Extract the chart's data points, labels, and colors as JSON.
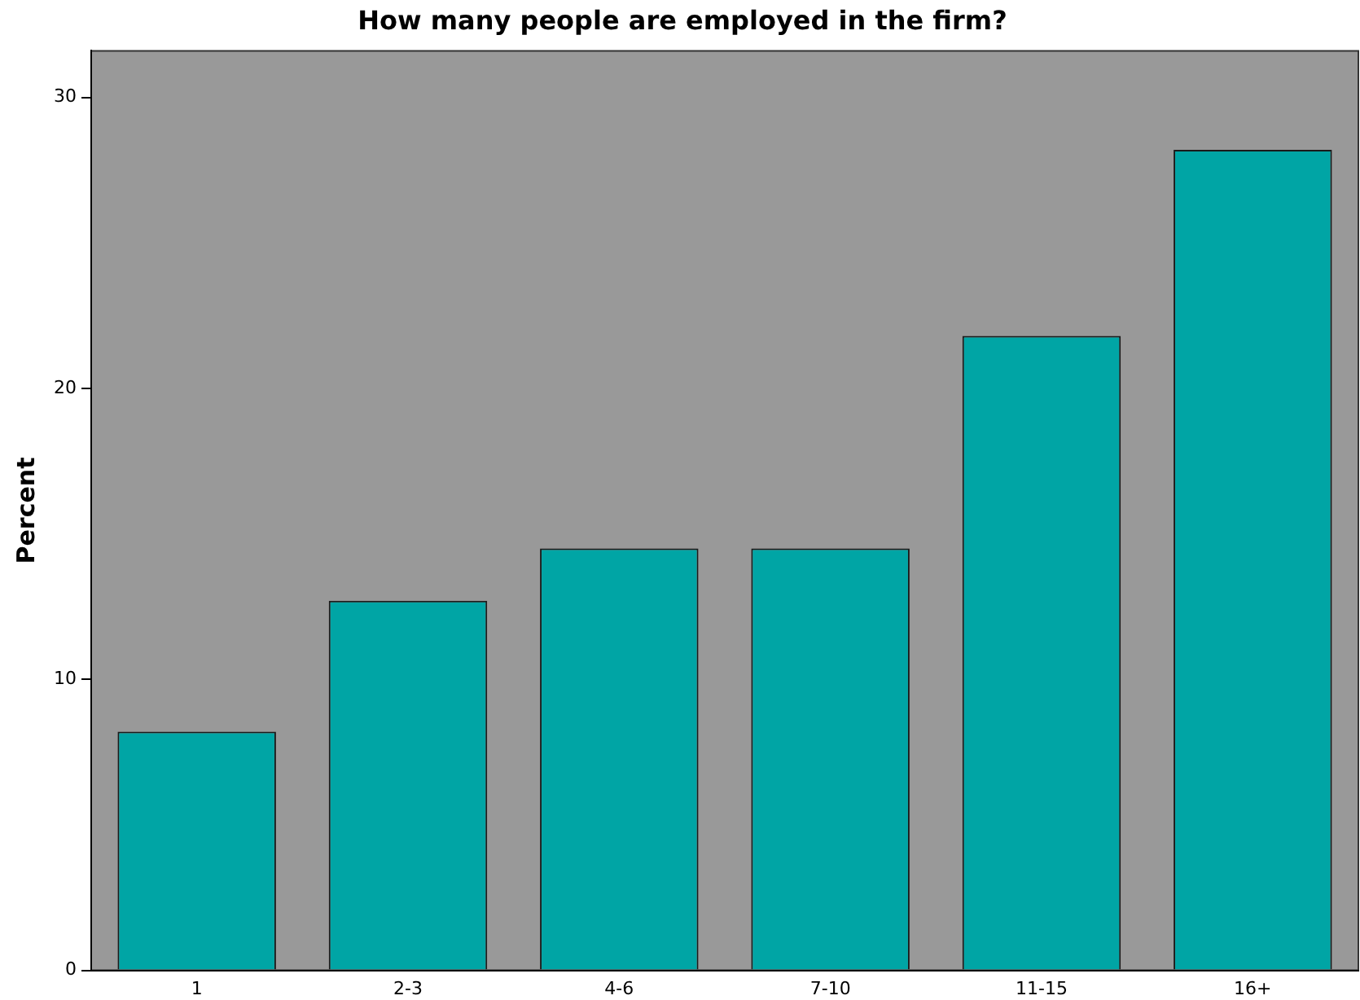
{
  "chart_data": {
    "type": "bar",
    "title": "How many people are employed in the firm?",
    "ylabel": "Percent",
    "categories": [
      "1",
      "2-3",
      "4-6",
      "7-10",
      "11-15",
      "16+"
    ],
    "values": [
      8.2,
      12.7,
      14.5,
      14.5,
      21.8,
      28.2
    ],
    "color": "#00a5a5",
    "ylim": [
      0,
      31.6
    ],
    "yticks": [
      0,
      10,
      20,
      30
    ],
    "grid": false,
    "legend": false
  }
}
